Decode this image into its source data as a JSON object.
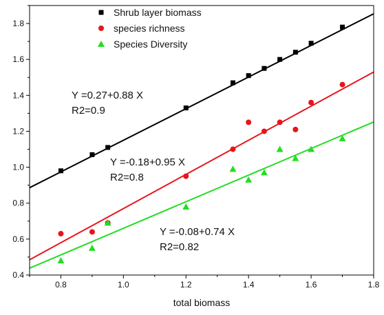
{
  "chart_data": {
    "type": "scatter",
    "title": "",
    "xlabel": "total biomass",
    "ylabel": "",
    "xlim": [
      0.7,
      1.8
    ],
    "ylim": [
      0.4,
      1.9
    ],
    "xticks": [
      "0.8",
      "1.0",
      "1.2",
      "1.4",
      "1.6",
      "1.8"
    ],
    "yticks": [
      "0.4",
      "0.6",
      "0.8",
      "1.0",
      "1.2",
      "1.4",
      "1.6",
      "1.8"
    ],
    "legend_position": "top-left",
    "grid": false,
    "series": [
      {
        "name": "Shrub layer biomass",
        "marker": "square",
        "color": "#000000",
        "points": [
          [
            0.8,
            0.98
          ],
          [
            0.9,
            1.07
          ],
          [
            0.95,
            1.11
          ],
          [
            1.2,
            1.33
          ],
          [
            1.35,
            1.47
          ],
          [
            1.4,
            1.51
          ],
          [
            1.45,
            1.55
          ],
          [
            1.5,
            1.6
          ],
          [
            1.55,
            1.64
          ],
          [
            1.6,
            1.69
          ],
          [
            1.7,
            1.78
          ]
        ],
        "fit": {
          "intercept": 0.27,
          "slope": 0.88
        },
        "equation_label": "Y =0.27+0.88 X",
        "r2_label": "R2=0.9"
      },
      {
        "name": "species richness",
        "marker": "circle",
        "color": "#e8141b",
        "points": [
          [
            0.8,
            0.63
          ],
          [
            0.9,
            0.64
          ],
          [
            0.95,
            0.69
          ],
          [
            1.2,
            0.95
          ],
          [
            1.35,
            1.1
          ],
          [
            1.4,
            1.25
          ],
          [
            1.45,
            1.2
          ],
          [
            1.5,
            1.25
          ],
          [
            1.55,
            1.21
          ],
          [
            1.6,
            1.36
          ],
          [
            1.7,
            1.46
          ]
        ],
        "fit": {
          "intercept": -0.18,
          "slope": 0.95
        },
        "equation_label": "Y =-0.18+0.95 X",
        "r2_label": "R2=0.8"
      },
      {
        "name": "Species Diversity",
        "marker": "triangle",
        "color": "#22dd22",
        "points": [
          [
            0.8,
            0.48
          ],
          [
            0.9,
            0.55
          ],
          [
            0.95,
            0.69
          ],
          [
            1.2,
            0.78
          ],
          [
            1.35,
            0.99
          ],
          [
            1.4,
            0.93
          ],
          [
            1.45,
            0.97
          ],
          [
            1.5,
            1.1
          ],
          [
            1.55,
            1.05
          ],
          [
            1.6,
            1.1
          ],
          [
            1.7,
            1.16
          ]
        ],
        "fit": {
          "intercept": -0.08,
          "slope": 0.74
        },
        "equation_label": "Y =-0.08+0.74 X",
        "r2_label": "R2=0.82"
      }
    ]
  }
}
